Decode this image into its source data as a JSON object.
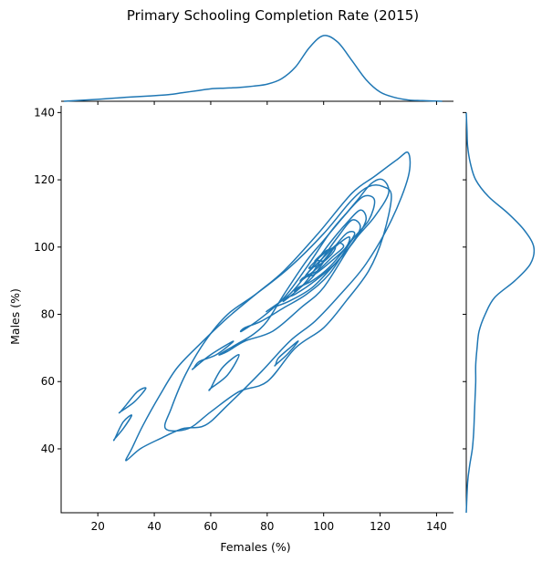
{
  "chart_data": {
    "type": "kde_joint",
    "title": "Primary Schooling Completion Rate (2015)",
    "xlabel": "Females (%)",
    "ylabel": "Males (%)",
    "xlim": [
      7,
      146
    ],
    "ylim": [
      21,
      142
    ],
    "xticks": [
      20,
      40,
      60,
      80,
      100,
      120,
      140
    ],
    "yticks": [
      40,
      60,
      80,
      100,
      120,
      140
    ],
    "color": "#1f77b4",
    "grid": false,
    "marginal_x": {
      "x": [
        8,
        20,
        30,
        38,
        45,
        50,
        55,
        60,
        65,
        70,
        75,
        80,
        85,
        90,
        95,
        100,
        105,
        110,
        115,
        120,
        125,
        130,
        135,
        142
      ],
      "density": [
        0.0,
        0.03,
        0.06,
        0.08,
        0.1,
        0.13,
        0.16,
        0.19,
        0.2,
        0.21,
        0.23,
        0.26,
        0.34,
        0.52,
        0.82,
        1.0,
        0.9,
        0.62,
        0.33,
        0.14,
        0.06,
        0.02,
        0.01,
        0.0
      ]
    },
    "marginal_y": {
      "y": [
        21,
        30,
        35,
        40,
        45,
        50,
        55,
        60,
        65,
        70,
        75,
        80,
        85,
        90,
        95,
        100,
        105,
        110,
        115,
        120,
        125,
        130,
        135,
        140
      ],
      "density": [
        0.0,
        0.02,
        0.05,
        0.09,
        0.11,
        0.12,
        0.13,
        0.14,
        0.14,
        0.16,
        0.19,
        0.28,
        0.42,
        0.72,
        0.95,
        1.0,
        0.86,
        0.62,
        0.33,
        0.14,
        0.06,
        0.02,
        0.01,
        0.0
      ]
    },
    "contours": [
      [
        [
          30,
          36.5
        ],
        [
          35,
          40
        ],
        [
          42,
          43
        ],
        [
          50,
          46
        ],
        [
          58,
          47
        ],
        [
          66,
          53
        ],
        [
          78,
          63
        ],
        [
          88,
          72
        ],
        [
          97,
          78
        ],
        [
          106,
          86
        ],
        [
          115,
          95
        ],
        [
          124,
          108
        ],
        [
          130,
          121
        ],
        [
          130,
          128
        ],
        [
          126,
          126
        ],
        [
          118,
          121
        ],
        [
          110,
          116
        ],
        [
          98,
          104
        ],
        [
          86,
          93
        ],
        [
          76,
          86
        ],
        [
          66,
          79
        ],
        [
          56,
          71
        ],
        [
          48,
          64
        ],
        [
          42,
          56
        ],
        [
          36,
          47
        ],
        [
          32,
          40
        ]
      ],
      [
        [
          44,
          46
        ],
        [
          52,
          46
        ],
        [
          60,
          51
        ],
        [
          70,
          57
        ],
        [
          80,
          60
        ],
        [
          90,
          70
        ],
        [
          100,
          76
        ],
        [
          108,
          84
        ],
        [
          116,
          93
        ],
        [
          121,
          103
        ],
        [
          124,
          115
        ],
        [
          121,
          118
        ],
        [
          116,
          118
        ],
        [
          110,
          114
        ],
        [
          100,
          104
        ],
        [
          88,
          94
        ],
        [
          76,
          86
        ],
        [
          66,
          80
        ],
        [
          58,
          72
        ],
        [
          51,
          62
        ],
        [
          46,
          52
        ]
      ],
      [
        [
          28,
          51
        ],
        [
          33,
          54
        ],
        [
          37,
          58
        ],
        [
          34,
          57
        ],
        [
          30,
          53
        ],
        [
          28,
          51
        ]
      ],
      [
        [
          26,
          43
        ],
        [
          29,
          46
        ],
        [
          32,
          50
        ],
        [
          29,
          48
        ],
        [
          26,
          43
        ]
      ],
      [
        [
          54,
          64
        ],
        [
          60,
          68
        ],
        [
          68,
          72
        ],
        [
          62,
          68
        ],
        [
          56,
          66
        ],
        [
          54,
          64
        ]
      ],
      [
        [
          60,
          58
        ],
        [
          66,
          62
        ],
        [
          70,
          68
        ],
        [
          64,
          64
        ],
        [
          60,
          58
        ]
      ],
      [
        [
          83,
          65
        ],
        [
          87,
          68
        ],
        [
          91,
          72
        ],
        [
          88,
          70
        ],
        [
          84,
          67
        ],
        [
          83,
          65
        ]
      ],
      [
        [
          63,
          68
        ],
        [
          69,
          71
        ],
        [
          75,
          74
        ],
        [
          80,
          78
        ],
        [
          86,
          86
        ],
        [
          94,
          96
        ],
        [
          100,
          102
        ],
        [
          106,
          108
        ],
        [
          112,
          114
        ],
        [
          117,
          119
        ],
        [
          121,
          120
        ],
        [
          123,
          116
        ],
        [
          118,
          109
        ],
        [
          110,
          101
        ],
        [
          100,
          88
        ],
        [
          92,
          82
        ],
        [
          82,
          75
        ],
        [
          72,
          72
        ],
        [
          66,
          69
        ]
      ],
      [
        [
          71,
          75
        ],
        [
          78,
          79
        ],
        [
          86,
          85
        ],
        [
          94,
          94
        ],
        [
          102,
          104
        ],
        [
          108,
          110
        ],
        [
          114,
          115
        ],
        [
          118,
          114
        ],
        [
          116,
          108
        ],
        [
          110,
          102
        ],
        [
          102,
          92
        ],
        [
          94,
          86
        ],
        [
          86,
          82
        ],
        [
          78,
          78
        ],
        [
          72,
          76
        ]
      ],
      [
        [
          80,
          81
        ],
        [
          88,
          86
        ],
        [
          95,
          93
        ],
        [
          102,
          101
        ],
        [
          108,
          107
        ],
        [
          113,
          111
        ],
        [
          115,
          108
        ],
        [
          111,
          102
        ],
        [
          104,
          95
        ],
        [
          96,
          88
        ],
        [
          88,
          84
        ],
        [
          82,
          82
        ]
      ],
      [
        [
          86,
          84
        ],
        [
          93,
          89
        ],
        [
          99,
          96
        ],
        [
          105,
          103
        ],
        [
          110,
          108
        ],
        [
          113,
          106
        ],
        [
          110,
          101
        ],
        [
          104,
          95
        ],
        [
          97,
          90
        ],
        [
          90,
          86
        ],
        [
          87,
          85
        ]
      ],
      [
        [
          90,
          87
        ],
        [
          96,
          91
        ],
        [
          102,
          98
        ],
        [
          108,
          104
        ],
        [
          111,
          104
        ],
        [
          108,
          100
        ],
        [
          102,
          94
        ],
        [
          96,
          90
        ],
        [
          91,
          88
        ]
      ],
      [
        [
          92,
          90
        ],
        [
          98,
          94
        ],
        [
          104,
          100
        ],
        [
          109,
          103
        ],
        [
          108,
          100
        ],
        [
          103,
          96
        ],
        [
          97,
          92
        ],
        [
          93,
          91
        ]
      ],
      [
        [
          94,
          92
        ],
        [
          100,
          97
        ],
        [
          105,
          101
        ],
        [
          107,
          100
        ],
        [
          103,
          97
        ],
        [
          98,
          93
        ],
        [
          95,
          92
        ]
      ],
      [
        [
          95,
          94
        ],
        [
          100,
          98
        ],
        [
          104,
          100
        ],
        [
          103,
          98
        ],
        [
          99,
          95
        ],
        [
          96,
          94
        ]
      ],
      [
        [
          97,
          96
        ],
        [
          101,
          99
        ],
        [
          103,
          99
        ],
        [
          100,
          96
        ],
        [
          98,
          96
        ]
      ]
    ]
  }
}
